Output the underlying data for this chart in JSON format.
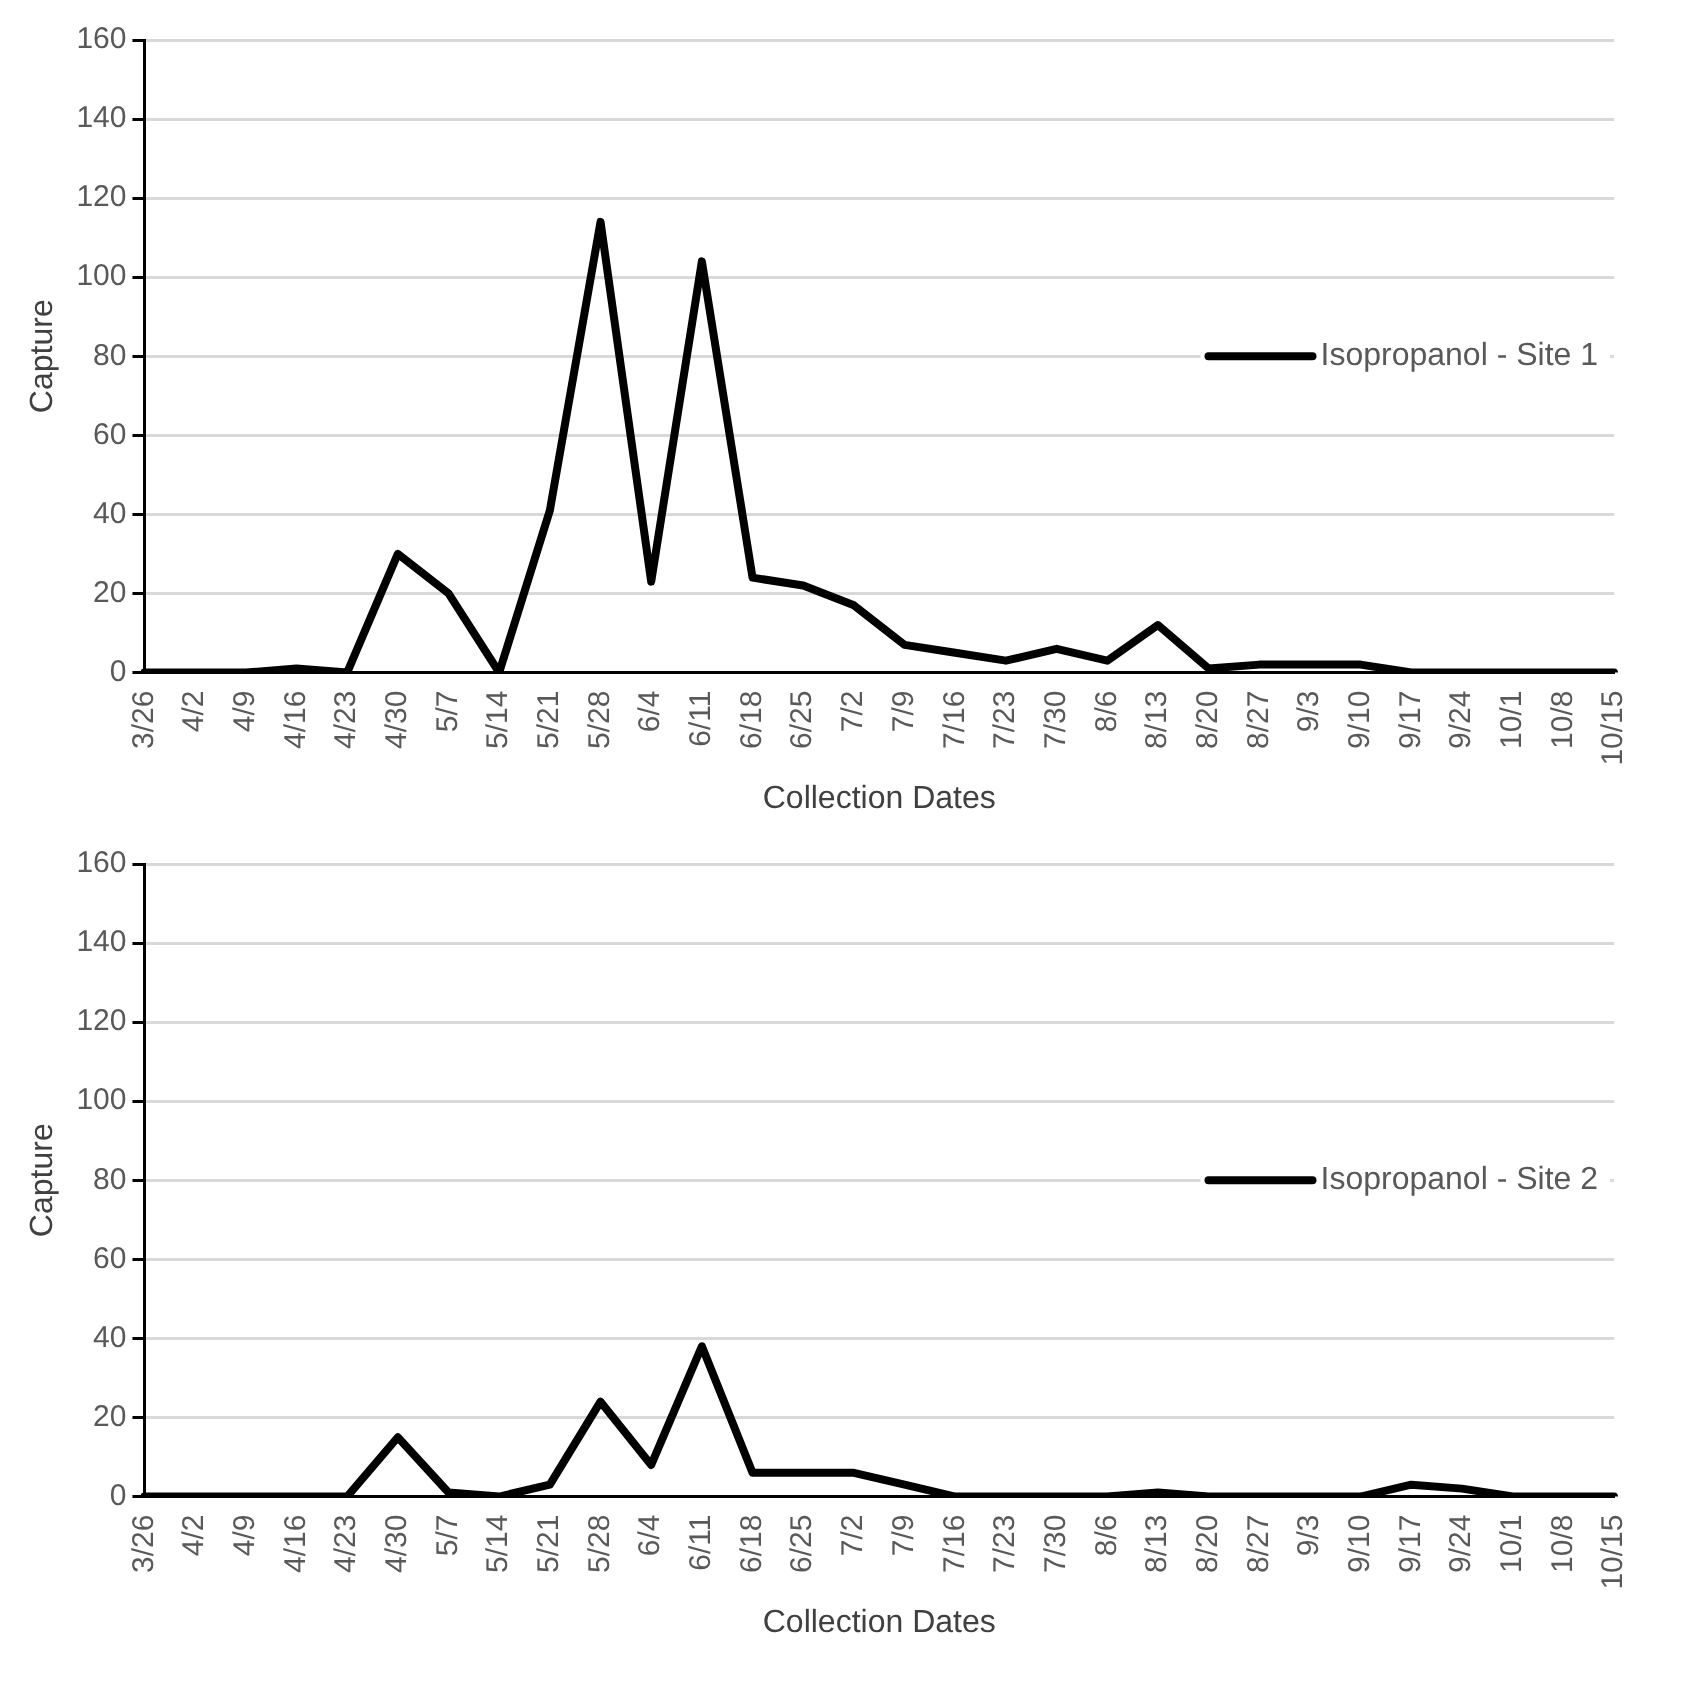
{
  "chart_data": [
    {
      "type": "line",
      "xlabel": "Collection Dates",
      "ylabel": "Capture",
      "categories": [
        "3/26",
        "4/2",
        "4/9",
        "4/16",
        "4/23",
        "4/30",
        "5/7",
        "5/14",
        "5/21",
        "5/28",
        "6/4",
        "6/11",
        "6/18",
        "6/25",
        "7/2",
        "7/9",
        "7/16",
        "7/23",
        "7/30",
        "8/6",
        "8/13",
        "8/20",
        "8/27",
        "9/3",
        "9/10",
        "9/17",
        "9/24",
        "10/1",
        "10/8",
        "10/15"
      ],
      "series": [
        {
          "name": "Isopropanol - Site 1",
          "color": "#000000",
          "values": [
            0,
            0,
            0,
            1,
            0,
            30,
            20,
            0,
            41,
            114,
            23,
            104,
            24,
            22,
            17,
            7,
            5,
            3,
            6,
            3,
            12,
            1,
            2,
            2,
            2,
            0,
            0,
            0,
            0,
            0
          ]
        }
      ],
      "ylim": [
        0,
        160
      ],
      "yticks": [
        0,
        20,
        40,
        60,
        80,
        100,
        120,
        140,
        160
      ],
      "grid": "y",
      "legend": "right",
      "marker": "none",
      "line_style": "solid"
    },
    {
      "type": "line",
      "xlabel": "Collection Dates",
      "ylabel": "Capture",
      "categories": [
        "3/26",
        "4/2",
        "4/9",
        "4/16",
        "4/23",
        "4/30",
        "5/7",
        "5/14",
        "5/21",
        "5/28",
        "6/4",
        "6/11",
        "6/18",
        "6/25",
        "7/2",
        "7/9",
        "7/16",
        "7/23",
        "7/30",
        "8/6",
        "8/13",
        "8/20",
        "8/27",
        "9/3",
        "9/10",
        "9/17",
        "9/24",
        "10/1",
        "10/8",
        "10/15"
      ],
      "series": [
        {
          "name": "Isopropanol - Site 2",
          "color": "#000000",
          "values": [
            0,
            0,
            0,
            0,
            0,
            15,
            1,
            0,
            3,
            24,
            8,
            38,
            6,
            6,
            6,
            3,
            0,
            0,
            0,
            0,
            1,
            0,
            0,
            0,
            0,
            3,
            2,
            0,
            0,
            0
          ]
        }
      ],
      "ylim": [
        0,
        160
      ],
      "yticks": [
        0,
        20,
        40,
        60,
        80,
        100,
        120,
        140,
        160
      ],
      "grid": "y",
      "legend": "right",
      "marker": "none",
      "line_style": "solid"
    }
  ]
}
